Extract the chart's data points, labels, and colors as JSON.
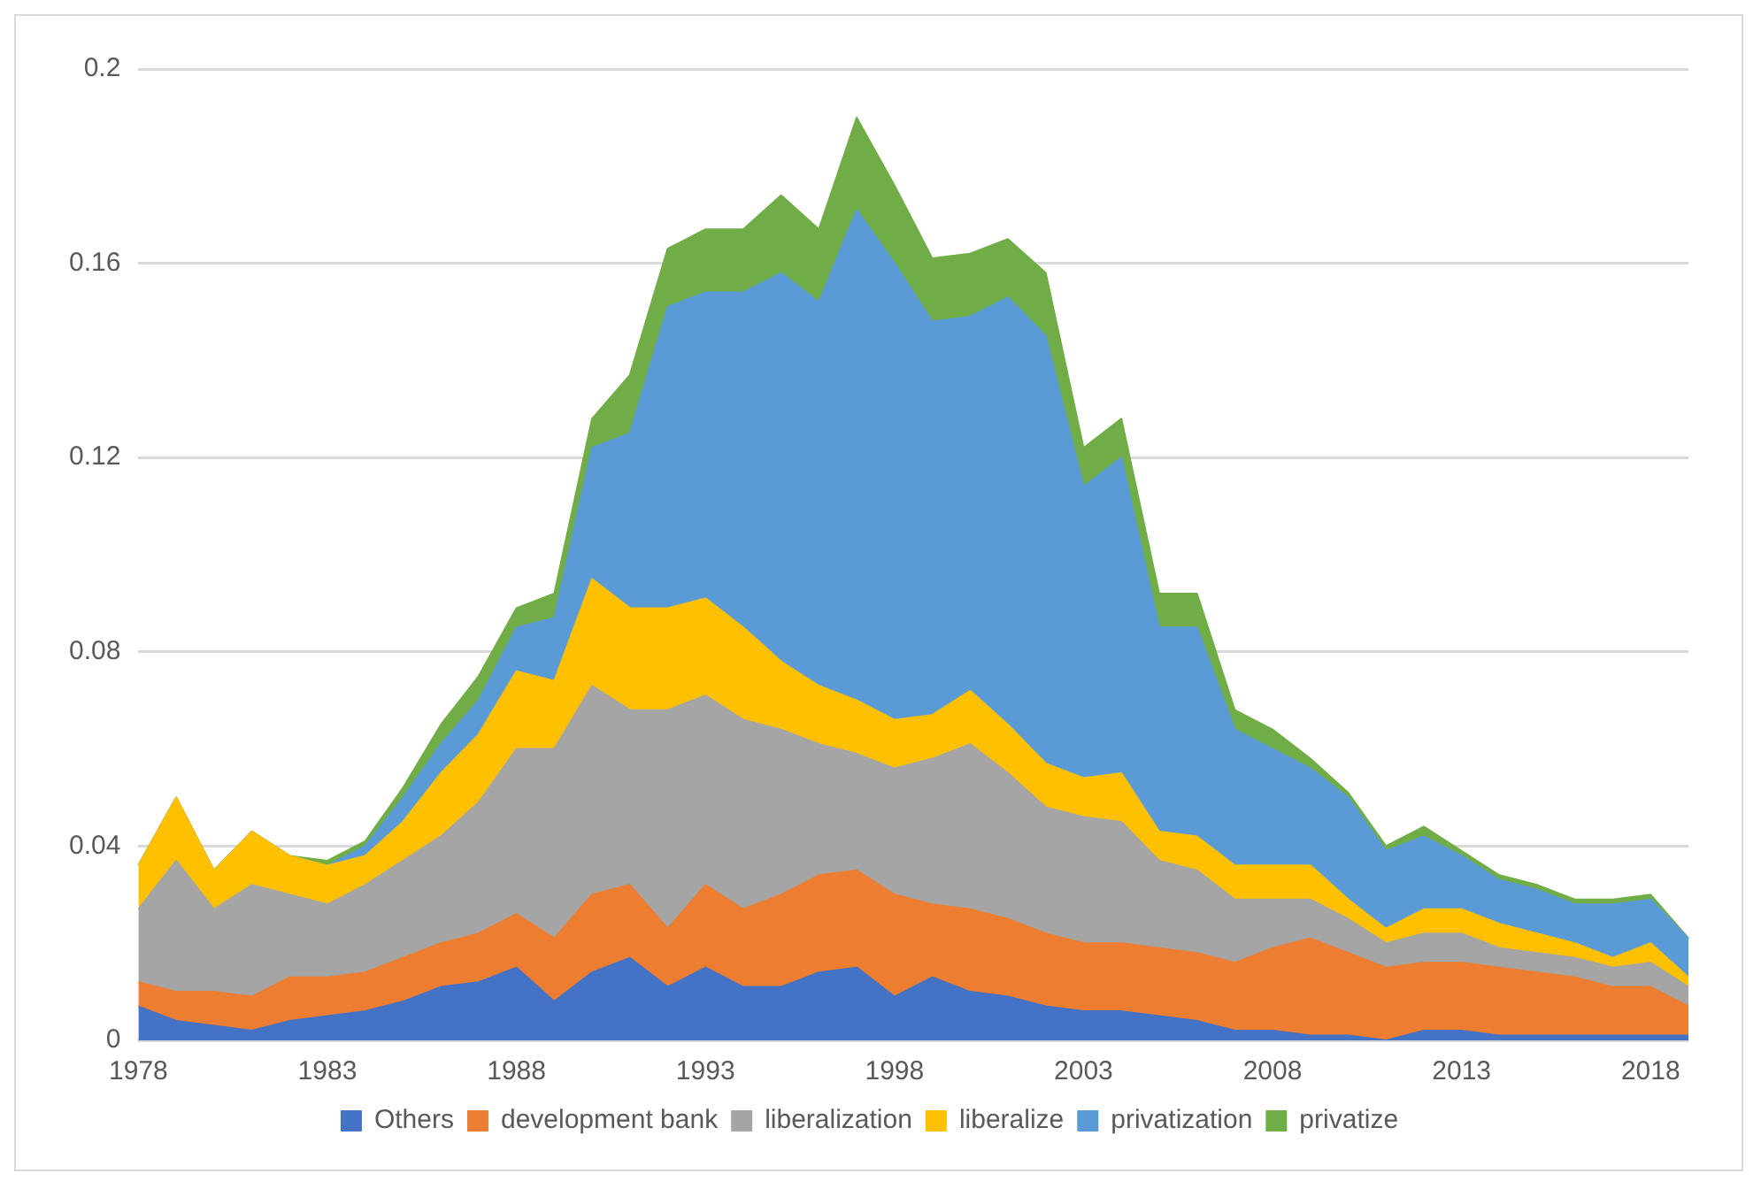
{
  "chart_data": {
    "type": "area",
    "stacked": true,
    "grid": "y",
    "legend": "bottom",
    "categories": [
      "1978",
      null,
      null,
      null,
      null,
      "1983",
      null,
      null,
      null,
      null,
      "1988",
      null,
      null,
      null,
      null,
      "1993",
      null,
      null,
      null,
      null,
      "1998",
      null,
      null,
      null,
      null,
      "2003",
      null,
      null,
      null,
      null,
      "2008",
      null,
      null,
      null,
      null,
      "2013",
      null,
      null,
      null,
      null,
      "2018",
      null
    ],
    "ylim": [
      0,
      0.2
    ],
    "yticks": [
      0,
      0.04,
      0.08,
      0.12,
      0.16,
      0.2
    ],
    "series": [
      {
        "name": "Others",
        "color": "#4472c4",
        "values": [
          0.007,
          0.004,
          0.003,
          0.002,
          0.004,
          0.005,
          0.006,
          0.008,
          0.011,
          0.012,
          0.015,
          0.008,
          0.014,
          0.017,
          0.011,
          0.015,
          0.011,
          0.011,
          0.014,
          0.015,
          0.009,
          0.013,
          0.01,
          0.009,
          0.007,
          0.006,
          0.006,
          0.005,
          0.004,
          0.002,
          0.002,
          0.001,
          0.001,
          0.0,
          0.002,
          0.002,
          0.001,
          0.001,
          0.001,
          0.001,
          0.001,
          0.001
        ]
      },
      {
        "name": "development bank",
        "color": "#ed7d31",
        "values": [
          0.005,
          0.006,
          0.007,
          0.007,
          0.009,
          0.008,
          0.008,
          0.009,
          0.009,
          0.01,
          0.011,
          0.013,
          0.016,
          0.015,
          0.012,
          0.017,
          0.016,
          0.019,
          0.02,
          0.02,
          0.021,
          0.015,
          0.017,
          0.016,
          0.015,
          0.014,
          0.014,
          0.014,
          0.014,
          0.014,
          0.017,
          0.02,
          0.017,
          0.015,
          0.014,
          0.014,
          0.014,
          0.013,
          0.012,
          0.01,
          0.01,
          0.006
        ]
      },
      {
        "name": "liberalization",
        "color": "#a5a5a5",
        "values": [
          0.015,
          0.027,
          0.017,
          0.023,
          0.017,
          0.015,
          0.018,
          0.02,
          0.022,
          0.027,
          0.034,
          0.039,
          0.043,
          0.036,
          0.045,
          0.039,
          0.039,
          0.034,
          0.027,
          0.024,
          0.026,
          0.03,
          0.034,
          0.03,
          0.026,
          0.026,
          0.025,
          0.018,
          0.017,
          0.013,
          0.01,
          0.008,
          0.007,
          0.005,
          0.006,
          0.006,
          0.004,
          0.004,
          0.004,
          0.004,
          0.005,
          0.004
        ]
      },
      {
        "name": "liberalize",
        "color": "#ffc000",
        "values": [
          0.009,
          0.013,
          0.008,
          0.011,
          0.008,
          0.008,
          0.006,
          0.008,
          0.013,
          0.014,
          0.016,
          0.014,
          0.022,
          0.021,
          0.021,
          0.02,
          0.019,
          0.014,
          0.012,
          0.011,
          0.01,
          0.009,
          0.011,
          0.01,
          0.009,
          0.008,
          0.01,
          0.006,
          0.007,
          0.007,
          0.007,
          0.007,
          0.004,
          0.003,
          0.005,
          0.005,
          0.005,
          0.004,
          0.003,
          0.002,
          0.004,
          0.002
        ]
      },
      {
        "name": "privatization",
        "color": "#5b9bd5",
        "values": [
          0.0,
          0.0,
          0.0,
          0.0,
          0.0,
          0.0,
          0.002,
          0.005,
          0.006,
          0.007,
          0.009,
          0.013,
          0.027,
          0.036,
          0.062,
          0.063,
          0.069,
          0.08,
          0.079,
          0.101,
          0.094,
          0.081,
          0.077,
          0.088,
          0.088,
          0.06,
          0.065,
          0.042,
          0.043,
          0.028,
          0.024,
          0.02,
          0.021,
          0.016,
          0.015,
          0.011,
          0.009,
          0.009,
          0.008,
          0.011,
          0.009,
          0.008
        ]
      },
      {
        "name": "privatize",
        "color": "#70ad47",
        "values": [
          0.0,
          0.0,
          0.0,
          0.0,
          0.0,
          0.001,
          0.001,
          0.002,
          0.004,
          0.005,
          0.004,
          0.005,
          0.006,
          0.012,
          0.012,
          0.013,
          0.013,
          0.016,
          0.015,
          0.019,
          0.016,
          0.013,
          0.013,
          0.012,
          0.013,
          0.008,
          0.008,
          0.007,
          0.007,
          0.004,
          0.004,
          0.002,
          0.001,
          0.001,
          0.002,
          0.001,
          0.001,
          0.001,
          0.001,
          0.001,
          0.001,
          0.0
        ]
      }
    ]
  }
}
